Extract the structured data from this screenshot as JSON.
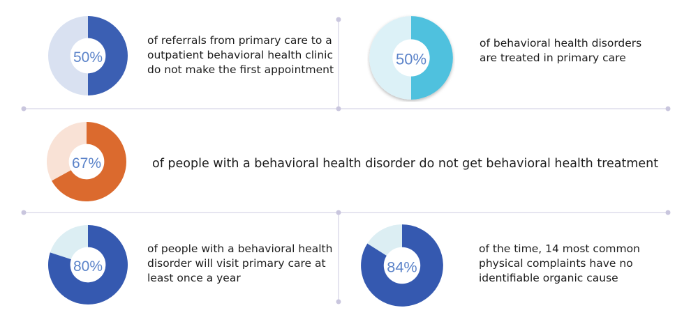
{
  "colors": {
    "guide_line": "#d7d5e6",
    "guide_dot": "#c9c6de",
    "hole": "#ffffff"
  },
  "chart_data": [
    {
      "type": "pie",
      "values": [
        50,
        50
      ],
      "center_label": "50%",
      "description": "of referrals from primary care to a\noutpatient behavioral health clinic\ndo not make the first appointment",
      "colors": {
        "filled": "#3b5fb3",
        "rest": "#d9e1f1",
        "label": "#5b83c9"
      }
    },
    {
      "type": "pie",
      "values": [
        50,
        50
      ],
      "center_label": "50%",
      "description": "of behavioral health disorders\nare treated in primary care",
      "colors": {
        "filled": "#4fc1de",
        "rest": "#dcf1f7",
        "label": "#5b83c9"
      }
    },
    {
      "type": "pie",
      "values": [
        67,
        33
      ],
      "center_label": "67%",
      "description": "of people with a behavioral health disorder do not get behavioral health treatment",
      "colors": {
        "filled": "#db6a2e",
        "rest": "#f9e2d6",
        "label": "#5b83c9"
      }
    },
    {
      "type": "pie",
      "values": [
        80,
        20
      ],
      "center_label": "80%",
      "description": "of people with a behavioral health\ndisorder will visit primary care at\nleast once a year",
      "colors": {
        "filled": "#3559b0",
        "rest": "#dceef3",
        "label": "#5b83c9"
      }
    },
    {
      "type": "pie",
      "values": [
        84,
        16
      ],
      "center_label": "84%",
      "description": "of the time, 14 most common\nphysical complaints have no\nidentifiable organic cause",
      "colors": {
        "filled": "#3559b0",
        "rest": "#dceef3",
        "label": "#5b83c9"
      }
    }
  ]
}
